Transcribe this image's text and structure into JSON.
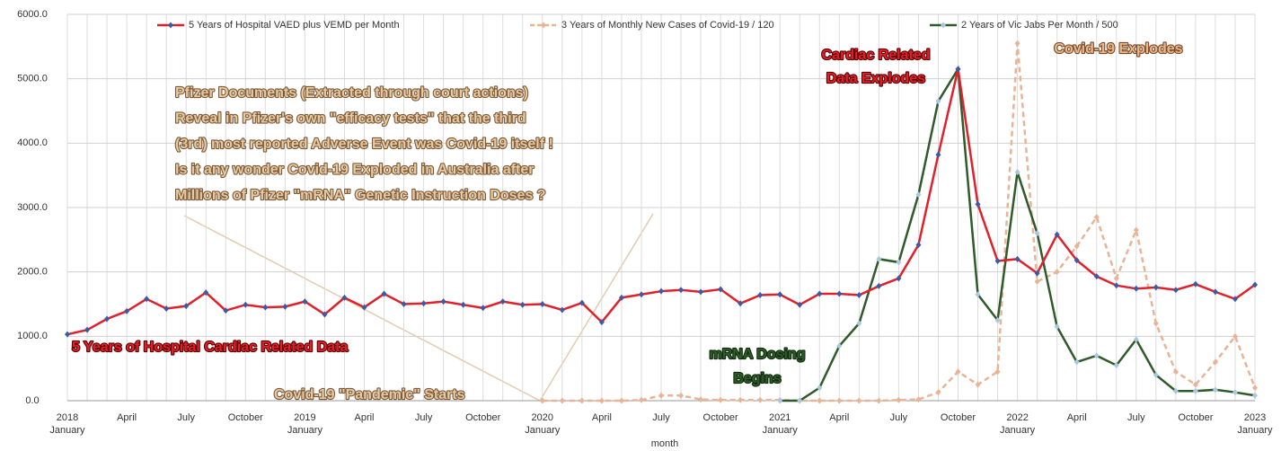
{
  "chart_data": {
    "type": "line",
    "x_label": "month",
    "categories": [
      "January",
      null,
      null,
      "April",
      null,
      null,
      "July",
      null,
      null,
      "October",
      null,
      null,
      "January",
      null,
      null,
      "April",
      null,
      null,
      "July",
      null,
      null,
      "October",
      null,
      null,
      "January",
      null,
      null,
      "April",
      null,
      null,
      "July",
      null,
      null,
      "October",
      null,
      null,
      "January",
      null,
      null,
      "April",
      null,
      null,
      "July",
      null,
      null,
      "October",
      null,
      null,
      "January",
      null,
      null,
      "April",
      null,
      null,
      "July",
      null,
      null,
      "October",
      null,
      null,
      "January"
    ],
    "year_labels": [
      "2018",
      "2019",
      "2020",
      "2021",
      "2022",
      "2023"
    ],
    "ylim": [
      0,
      6000
    ],
    "yticks": [
      {
        "value": 0,
        "label": "0.0"
      },
      {
        "value": 1000,
        "label": "1000.0"
      },
      {
        "value": 2000,
        "label": "2000.0"
      },
      {
        "value": 3000,
        "label": "3000.0"
      },
      {
        "value": 4000,
        "label": "4000.0"
      },
      {
        "value": 5000,
        "label": "5000.0"
      },
      {
        "value": 6000,
        "label": "6000.0"
      }
    ],
    "grid": true,
    "series": [
      {
        "name": "5 Years of Hospital VAED plus VEMD per Month",
        "color": "#e0202a",
        "marker_color": "#3a5ba8",
        "dashed": false,
        "values": [
          1030,
          1100,
          1270,
          1390,
          1580,
          1430,
          1470,
          1680,
          1400,
          1490,
          1450,
          1460,
          1540,
          1340,
          1600,
          1450,
          1660,
          1500,
          1510,
          1540,
          1490,
          1440,
          1540,
          1490,
          1500,
          1410,
          1520,
          1220,
          1600,
          1650,
          1700,
          1720,
          1690,
          1730,
          1510,
          1640,
          1650,
          1490,
          1660,
          1660,
          1640,
          1780,
          1900,
          2420,
          3820,
          5150,
          3050,
          2170,
          2200,
          1980,
          2580,
          2180,
          1930,
          1790,
          1740,
          1760,
          1720,
          1810,
          1690,
          1580,
          1800
        ]
      },
      {
        "name": "3 Years of Monthly New Cases of Covid-19 / 120",
        "color": "#e8b496",
        "marker_color": "#e8b496",
        "dashed": true,
        "values": [
          null,
          null,
          null,
          null,
          null,
          null,
          null,
          null,
          null,
          null,
          null,
          null,
          null,
          null,
          null,
          null,
          null,
          null,
          null,
          null,
          null,
          null,
          null,
          null,
          0,
          0,
          0,
          0,
          0,
          10,
          80,
          80,
          20,
          10,
          10,
          10,
          10,
          0,
          0,
          0,
          0,
          0,
          10,
          20,
          130,
          450,
          250,
          450,
          5550,
          1850,
          2000,
          2400,
          2850,
          1900,
          2650,
          1200,
          450,
          250,
          600,
          1000,
          200
        ]
      },
      {
        "name": "2 Years of Vic Jabs Per Month / 500",
        "color": "#2f5a2a",
        "marker_color": "#a9c8e0",
        "dashed": false,
        "values": [
          null,
          null,
          null,
          null,
          null,
          null,
          null,
          null,
          null,
          null,
          null,
          null,
          null,
          null,
          null,
          null,
          null,
          null,
          null,
          null,
          null,
          null,
          null,
          null,
          null,
          null,
          null,
          null,
          null,
          null,
          null,
          null,
          null,
          null,
          null,
          null,
          0,
          0,
          200,
          850,
          1200,
          2200,
          2150,
          3200,
          4650,
          5150,
          1650,
          1250,
          3550,
          2600,
          1150,
          600,
          700,
          550,
          950,
          400,
          150,
          150,
          170,
          130,
          80
        ]
      }
    ],
    "annotations": [
      {
        "lines": [
          "Pfizer Documents (Extracted through court actions)",
          "Reveal in Pfizer's own \"efficacy tests\" that the third",
          "(3rd) most reported Adverse Event was Covid-19 itself !",
          "Is it any wonder Covid-19 Exploded in Australia after",
          "Millions of Pfizer \"mRNA\" Genetic Instruction Doses ?"
        ],
        "color": "#e8c9a0"
      },
      {
        "lines": [
          "Cardiac Related",
          "Data Explodes"
        ],
        "color": "#e0202a"
      },
      {
        "lines": [
          "Covid-19 Explodes"
        ],
        "color": "#e8b98a"
      },
      {
        "lines": [
          "5 Years of Hospital Cardiac Related Data"
        ],
        "color": "#e0202a"
      },
      {
        "lines": [
          "mRNA Dosing",
          "Begins"
        ],
        "color": "#2f5a2a"
      },
      {
        "lines": [
          "Covid-19 \"Pandemic\" Starts"
        ],
        "color": "#e8c9a0"
      }
    ]
  }
}
